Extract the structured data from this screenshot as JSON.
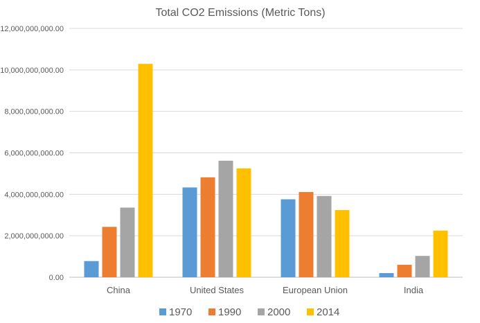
{
  "chart_data": {
    "type": "bar",
    "title": "Total CO2 Emissions (Metric Tons)",
    "categories": [
      "China",
      "United States",
      "European Union",
      "India"
    ],
    "series": [
      {
        "name": "1970",
        "color": "#5b9bd5",
        "values": [
          780000000,
          4330000000,
          3760000000,
          200000000
        ]
      },
      {
        "name": "1990",
        "color": "#ed7d31",
        "values": [
          2430000000,
          4820000000,
          4110000000,
          600000000
        ]
      },
      {
        "name": "2000",
        "color": "#a5a5a5",
        "values": [
          3360000000,
          5620000000,
          3920000000,
          1030000000
        ]
      },
      {
        "name": "2014",
        "color": "#ffc000",
        "values": [
          10290000000,
          5250000000,
          3240000000,
          2250000000
        ]
      }
    ],
    "ylim": [
      0,
      12000000000
    ],
    "yticks": [
      "0.00",
      "2,000,000,000.00",
      "4,000,000,000.00",
      "6,000,000,000.00",
      "8,000,000,000.00",
      "10,000,000,000.00",
      "12,000,000,000.00"
    ],
    "ytick_values": [
      0,
      2000000000,
      4000000000,
      6000000000,
      8000000000,
      10000000000,
      12000000000
    ],
    "legend": "bottom",
    "grid": true
  }
}
